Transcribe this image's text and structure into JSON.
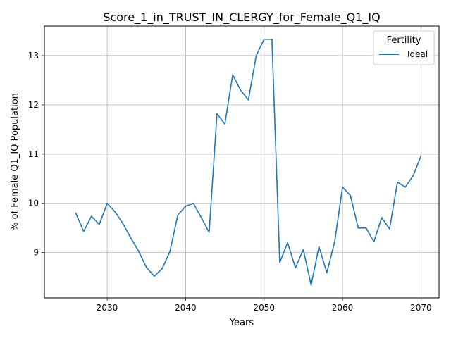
{
  "chart_data": {
    "type": "line",
    "title": "Score_1_in_TRUST_IN_CLERGY_for_Female_Q1_IQ",
    "xlabel": "Years",
    "ylabel": "% of Female Q1_IQ Population",
    "xlim": [
      2022,
      2072.3
    ],
    "ylim": [
      8.08,
      13.6
    ],
    "x_ticks": [
      2030,
      2040,
      2050,
      2060,
      2070
    ],
    "y_ticks": [
      9,
      10,
      11,
      12,
      13
    ],
    "grid": true,
    "legend": {
      "title": "Fertility",
      "placement": "top-right"
    },
    "series": [
      {
        "name": "Ideal",
        "color": "#1f77b4",
        "x": [
          2026,
          2027,
          2028,
          2029,
          2030,
          2031,
          2032,
          2033,
          2034,
          2035,
          2036,
          2037,
          2038,
          2039,
          2040,
          2041,
          2042,
          2043,
          2044,
          2045,
          2046,
          2047,
          2048,
          2049,
          2050,
          2051,
          2052,
          2053,
          2054,
          2055,
          2056,
          2057,
          2058,
          2059,
          2060,
          2061,
          2062,
          2063,
          2064,
          2065,
          2066,
          2067,
          2068,
          2069,
          2070
        ],
        "y": [
          9.8,
          9.43,
          9.74,
          9.57,
          10.0,
          9.83,
          9.59,
          9.3,
          9.03,
          8.7,
          8.52,
          8.67,
          9.02,
          9.76,
          9.94,
          10.0,
          9.71,
          9.41,
          11.82,
          11.61,
          12.61,
          12.3,
          12.1,
          13.0,
          13.33,
          13.33,
          8.8,
          9.2,
          8.69,
          9.06,
          8.34,
          9.12,
          8.59,
          9.22,
          10.33,
          10.16,
          9.5,
          9.5,
          9.22,
          9.71,
          9.48,
          10.43,
          10.33,
          10.56,
          10.96
        ]
      }
    ]
  }
}
